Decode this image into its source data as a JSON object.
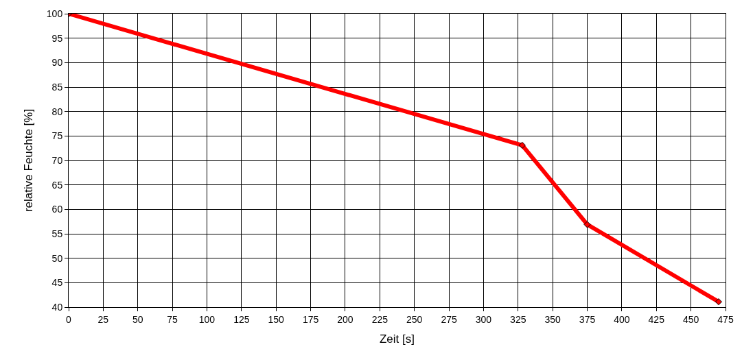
{
  "chart_data": {
    "type": "line",
    "xlabel": "Zeit [s]",
    "ylabel": "relative Feuchte [%]",
    "x": [
      0,
      328,
      375,
      470
    ],
    "series": [
      {
        "color": "#ff0000",
        "values": [
          100,
          73.1,
          56.9,
          41.1
        ]
      }
    ],
    "xlim": [
      0,
      475
    ],
    "xticks": [
      0,
      25,
      50,
      75,
      100,
      125,
      150,
      175,
      200,
      225,
      250,
      275,
      300,
      325,
      350,
      375,
      400,
      425,
      450,
      475
    ],
    "ylim": [
      40,
      100
    ],
    "yticks": [
      40,
      45,
      50,
      55,
      60,
      65,
      70,
      75,
      80,
      85,
      90,
      95,
      100
    ],
    "grid": true,
    "marker": "diamond",
    "line_style": "solid"
  }
}
